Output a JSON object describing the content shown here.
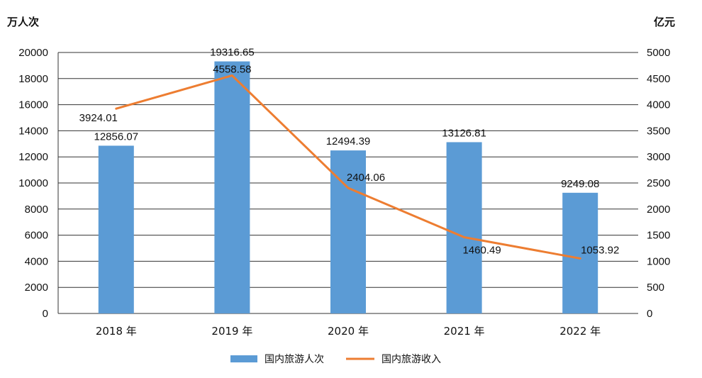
{
  "chart_data": {
    "type": "bar+line",
    "categories": [
      "2018 年",
      "2019 年",
      "2020 年",
      "2021 年",
      "2022 年"
    ],
    "left_axis": {
      "unit": "万人次",
      "ylim": [
        0,
        20000
      ],
      "ticks": [
        0,
        2000,
        4000,
        6000,
        8000,
        10000,
        12000,
        14000,
        16000,
        18000,
        20000
      ]
    },
    "right_axis": {
      "unit": "亿元",
      "ylim": [
        0,
        5000
      ],
      "ticks": [
        0,
        500,
        1000,
        1500,
        2000,
        2500,
        3000,
        3500,
        4000,
        4500,
        5000
      ]
    },
    "series": [
      {
        "name": "国内旅游人次",
        "type": "bar",
        "axis": "left",
        "color": "#5b9bd5",
        "values": [
          12856.07,
          19316.65,
          12494.39,
          13126.81,
          9249.08
        ],
        "labels": [
          "12856.07",
          "19316.65",
          "12494.39",
          "13126.81",
          "9249.08"
        ]
      },
      {
        "name": "国内旅游收入",
        "type": "line",
        "axis": "right",
        "color": "#ed7d31",
        "values": [
          3924.01,
          4558.58,
          2404.06,
          1460.49,
          1053.92
        ],
        "labels": [
          "3924.01",
          "4558.58",
          "2404.06",
          "1460.49",
          "1053.92"
        ]
      }
    ],
    "grid": true,
    "legend": "bottom-center"
  }
}
